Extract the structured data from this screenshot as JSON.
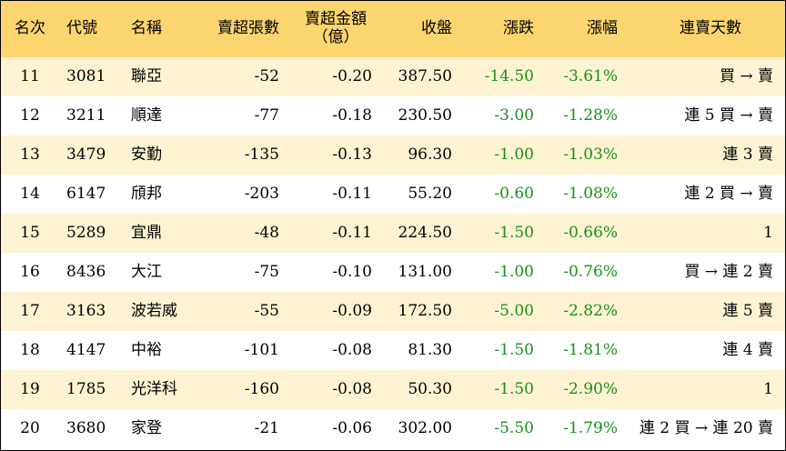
{
  "header": {
    "rank": "名次",
    "code": "代號",
    "name": "名稱",
    "sheets": "賣超張數",
    "amount_line1": "賣超金額",
    "amount_line2": "（億）",
    "close": "收盤",
    "change": "漲跌",
    "pct": "漲幅",
    "streak": "連賣天數"
  },
  "rows": [
    {
      "rank": "11",
      "code": "3081",
      "name": "聯亞",
      "sheets": "-52",
      "amount": "-0.20",
      "close": "387.50",
      "change": "-14.50",
      "pct": "-3.61%",
      "streak": "買 → 賣"
    },
    {
      "rank": "12",
      "code": "3211",
      "name": "順達",
      "sheets": "-77",
      "amount": "-0.18",
      "close": "230.50",
      "change": "-3.00",
      "pct": "-1.28%",
      "streak": "連 5 買 → 賣"
    },
    {
      "rank": "13",
      "code": "3479",
      "name": "安勤",
      "sheets": "-135",
      "amount": "-0.13",
      "close": "96.30",
      "change": "-1.00",
      "pct": "-1.03%",
      "streak": "連 3 賣"
    },
    {
      "rank": "14",
      "code": "6147",
      "name": "頎邦",
      "sheets": "-203",
      "amount": "-0.11",
      "close": "55.20",
      "change": "-0.60",
      "pct": "-1.08%",
      "streak": "連 2 買 → 賣"
    },
    {
      "rank": "15",
      "code": "5289",
      "name": "宜鼎",
      "sheets": "-48",
      "amount": "-0.11",
      "close": "224.50",
      "change": "-1.50",
      "pct": "-0.66%",
      "streak": "1"
    },
    {
      "rank": "16",
      "code": "8436",
      "name": "大江",
      "sheets": "-75",
      "amount": "-0.10",
      "close": "131.00",
      "change": "-1.00",
      "pct": "-0.76%",
      "streak": "買 → 連 2 賣"
    },
    {
      "rank": "17",
      "code": "3163",
      "name": "波若威",
      "sheets": "-55",
      "amount": "-0.09",
      "close": "172.50",
      "change": "-5.00",
      "pct": "-2.82%",
      "streak": "連 5 賣"
    },
    {
      "rank": "18",
      "code": "4147",
      "name": "中裕",
      "sheets": "-101",
      "amount": "-0.08",
      "close": "81.30",
      "change": "-1.50",
      "pct": "-1.81%",
      "streak": "連 4 賣"
    },
    {
      "rank": "19",
      "code": "1785",
      "name": "光洋科",
      "sheets": "-160",
      "amount": "-0.08",
      "close": "50.30",
      "change": "-1.50",
      "pct": "-2.90%",
      "streak": "1"
    },
    {
      "rank": "20",
      "code": "3680",
      "name": "家登",
      "sheets": "-21",
      "amount": "-0.06",
      "close": "302.00",
      "change": "-5.50",
      "pct": "-1.79%",
      "streak": "連 2 買 → 連 20 賣"
    }
  ],
  "colors": {
    "header_bg": "#fbd56f",
    "odd_row_bg": "#fdf3d2",
    "even_row_bg": "#ffffff",
    "change_text": "#1a8f1a",
    "border": "#000000"
  }
}
